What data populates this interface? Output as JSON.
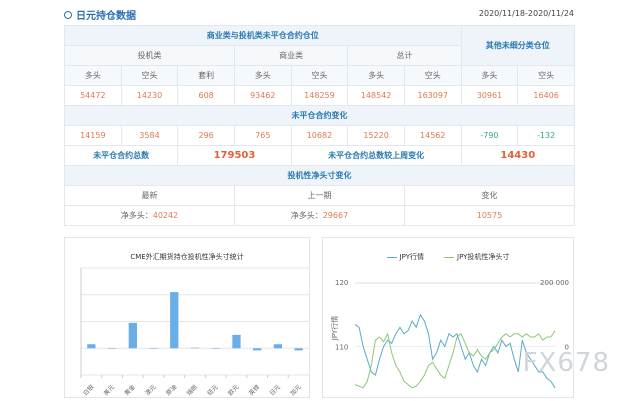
{
  "header": {
    "title": "日元持仓数据",
    "date_range": "2020/11/18-2020/11/24"
  },
  "table": {
    "group_main": "商业类与投机类未平仓合约仓位",
    "group_other": "其他未细分类仓位",
    "cats": [
      "投机类",
      "商业类",
      "总计"
    ],
    "cols": [
      "多头",
      "空头",
      "套利",
      "多头",
      "空头",
      "多头",
      "空头",
      "多头",
      "空头"
    ],
    "values": [
      "54472",
      "14230",
      "608",
      "93462",
      "148259",
      "148542",
      "163097",
      "30961",
      "16406"
    ],
    "change_title": "未平仓合约变化",
    "changes": [
      "14159",
      "3584",
      "296",
      "765",
      "10682",
      "15220",
      "14562",
      "-790",
      "-132"
    ],
    "total_label": "未平仓合约总数",
    "total_value": "179503",
    "total_change_label": "未平仓合约总数较上周变化",
    "total_change_value": "14430",
    "spec_title": "投机性净头寸变化",
    "spec_heads": [
      "最新",
      "上一期",
      "变化"
    ],
    "net_label": "净多头：",
    "latest": "40242",
    "previous": "29667",
    "change": "10575"
  },
  "chart_data": [
    {
      "type": "bar",
      "title": "CME外汇期货持仓投机性净头寸统计",
      "categories": [
        "白银",
        "美元",
        "黄金",
        "澳元",
        "原油",
        "瑞郎",
        "纽元",
        "欧元",
        "英镑",
        "日元",
        "加元"
      ],
      "values": [
        0.15,
        0,
        0.95,
        0,
        2.1,
        0.02,
        0,
        0.5,
        -0.08,
        0.15,
        -0.08
      ],
      "ylim": [
        -1,
        3
      ],
      "grid": true,
      "color": "#6aaee8"
    },
    {
      "type": "line",
      "legend_position": "top",
      "series": [
        {
          "name": "JPY行情",
          "color": "#5aaac8",
          "axis": "left",
          "values": [
            113.5,
            113,
            110,
            108,
            106,
            105.5,
            108,
            110,
            111,
            110.5,
            112,
            113,
            112,
            112.5,
            114,
            113,
            115,
            114,
            112,
            108,
            109,
            111,
            110,
            112,
            111.5,
            112,
            110,
            108,
            109,
            107,
            106,
            108,
            107,
            109,
            110,
            109,
            111,
            110,
            110.5,
            108,
            106,
            111,
            109,
            108,
            107,
            106,
            106,
            105,
            104.5,
            103.5
          ]
        },
        {
          "name": "JPY投机性净头寸",
          "color": "#8cc878",
          "axis": "right",
          "values": [
            -120000,
            -125000,
            -130000,
            -110000,
            -60000,
            20000,
            30000,
            15000,
            40000,
            -20000,
            -60000,
            -80000,
            -110000,
            -120000,
            -130000,
            -125000,
            -110000,
            -90000,
            -60000,
            -50000,
            -70000,
            -90000,
            -100000,
            -60000,
            -20000,
            30000,
            40000,
            10000,
            -20000,
            -30000,
            -10000,
            -30000,
            -40000,
            -20000,
            -10000,
            10000,
            30000,
            40000,
            30000,
            40000,
            40000,
            30000,
            40000,
            30000,
            30000,
            40000,
            20000,
            30000,
            30000,
            50000
          ]
        }
      ],
      "left_axis": {
        "label": "JPY行情",
        "ticks": [
          "120",
          "110"
        ],
        "range": [
          100,
          120
        ]
      },
      "right_axis": {
        "ticks": [
          "200 000",
          "0"
        ],
        "range": [
          -200000,
          200000
        ]
      }
    }
  ],
  "watermark": "FX678"
}
